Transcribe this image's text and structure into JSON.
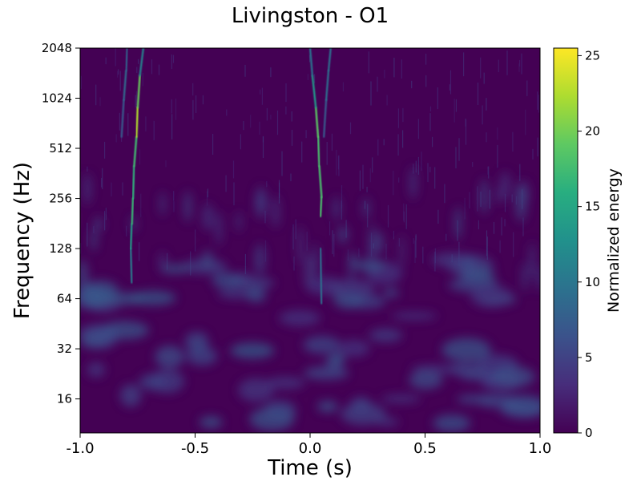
{
  "chart_data": {
    "type": "heatmap",
    "title": "Livingston - O1",
    "xlabel": "Time (s)",
    "ylabel": "Frequency (Hz)",
    "xlim": [
      -1.0,
      1.0
    ],
    "ylim": [
      10,
      2048
    ],
    "y_scale": "log2",
    "x_ticks": [
      -1.0,
      -0.5,
      0.0,
      0.5,
      1.0
    ],
    "x_tick_labels": [
      "-1.0",
      "-0.5",
      "0.0",
      "0.5",
      "1.0"
    ],
    "y_ticks": [
      16,
      32,
      64,
      128,
      256,
      512,
      1024,
      2048
    ],
    "y_tick_labels": [
      "16",
      "32",
      "64",
      "128",
      "256",
      "512",
      "1024",
      "2048"
    ],
    "colorbar": {
      "label": "Normalized energy",
      "range": [
        0,
        25.5
      ],
      "ticks": [
        0,
        5,
        10,
        15,
        20,
        25
      ],
      "tick_labels": [
        "0",
        "5",
        "10",
        "15",
        "20",
        "25"
      ],
      "colormap": "viridis"
    },
    "tracks": [
      {
        "points": [
          [
            -0.775,
            80,
            9
          ],
          [
            -0.78,
            128,
            12
          ],
          [
            -0.775,
            180,
            16
          ],
          [
            -0.77,
            256,
            18
          ],
          [
            -0.765,
            400,
            15
          ],
          [
            -0.755,
            600,
            20
          ],
          [
            -0.75,
            900,
            25
          ],
          [
            -0.74,
            1400,
            14
          ],
          [
            -0.725,
            2048,
            8
          ]
        ]
      },
      {
        "points": [
          [
            -0.82,
            600,
            6
          ],
          [
            -0.81,
            1000,
            8
          ],
          [
            -0.8,
            1500,
            9
          ],
          [
            -0.795,
            2048,
            7
          ]
        ]
      },
      {
        "points": [
          [
            0.05,
            60,
            8
          ],
          [
            0.045,
            128,
            10
          ],
          [
            0.045,
            200,
            14
          ],
          [
            0.05,
            260,
            22
          ],
          [
            0.04,
            400,
            14
          ],
          [
            0.035,
            600,
            22
          ],
          [
            0.025,
            900,
            16
          ],
          [
            0.01,
            1400,
            11
          ],
          [
            0.0,
            2048,
            8
          ]
        ]
      },
      {
        "points": [
          [
            0.06,
            600,
            6
          ],
          [
            0.07,
            1000,
            8
          ],
          [
            0.08,
            1500,
            10
          ],
          [
            0.09,
            2048,
            8
          ]
        ]
      }
    ]
  }
}
